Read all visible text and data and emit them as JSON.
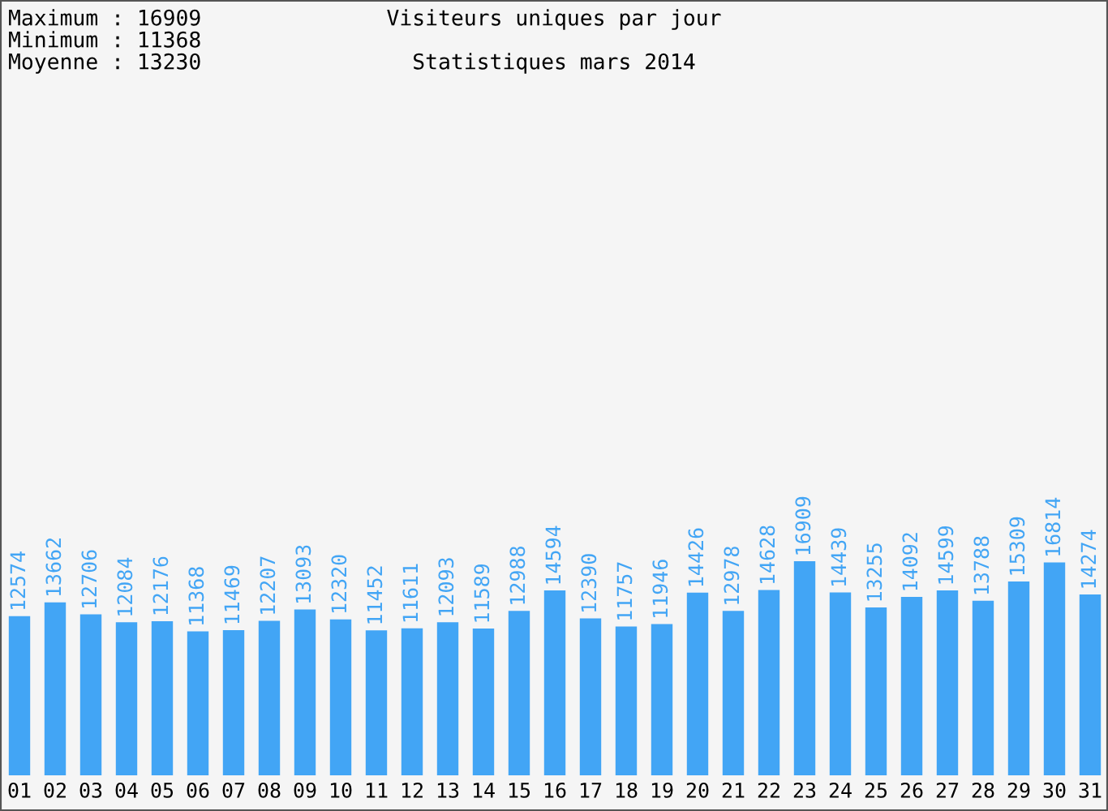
{
  "chart_data": {
    "type": "bar",
    "title": "Visiteurs uniques par jour",
    "subtitle": "Statistiques mars 2014",
    "annotations": [
      "Maximum : 16909",
      "Minimum : 11368",
      "Moyenne : 13230"
    ],
    "categories": [
      "01",
      "02",
      "03",
      "04",
      "05",
      "06",
      "07",
      "08",
      "09",
      "10",
      "11",
      "12",
      "13",
      "14",
      "15",
      "16",
      "17",
      "18",
      "19",
      "20",
      "21",
      "22",
      "23",
      "24",
      "25",
      "26",
      "27",
      "28",
      "29",
      "30",
      "31"
    ],
    "values": [
      12574,
      13662,
      12706,
      12084,
      12176,
      11368,
      11469,
      12207,
      13093,
      12320,
      11452,
      11611,
      12093,
      11589,
      12988,
      14594,
      12390,
      11757,
      11946,
      14426,
      12978,
      14628,
      16909,
      14439,
      13255,
      14092,
      14599,
      13788,
      15309,
      16814,
      14274
    ],
    "color": "#42a5f5",
    "data_labels": true,
    "tick_labels": "x",
    "grid": false,
    "legend": false
  }
}
